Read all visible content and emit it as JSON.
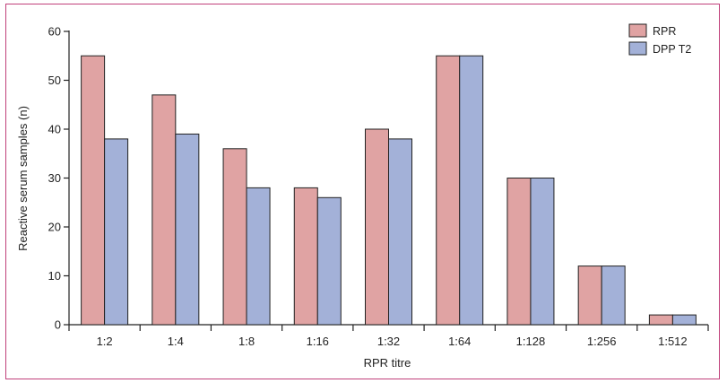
{
  "chart_data": {
    "type": "bar",
    "xlabel": "RPR titre",
    "ylabel": "Reactive serum samples (n)",
    "ylim": [
      0,
      60
    ],
    "yticks": [
      0,
      10,
      20,
      30,
      40,
      50,
      60
    ],
    "categories": [
      "1:2",
      "1:4",
      "1:8",
      "1:16",
      "1:32",
      "1:64",
      "1:128",
      "1:256",
      "1:512"
    ],
    "series": [
      {
        "name": "RPR",
        "color": "#e0a3a3",
        "values": [
          55,
          47,
          36,
          28,
          40,
          55,
          30,
          12,
          2
        ]
      },
      {
        "name": "DPP T2",
        "color": "#a3b1d8",
        "values": [
          38,
          39,
          28,
          26,
          38,
          55,
          30,
          12,
          2
        ]
      }
    ],
    "legend": "top-right",
    "grid": false
  }
}
